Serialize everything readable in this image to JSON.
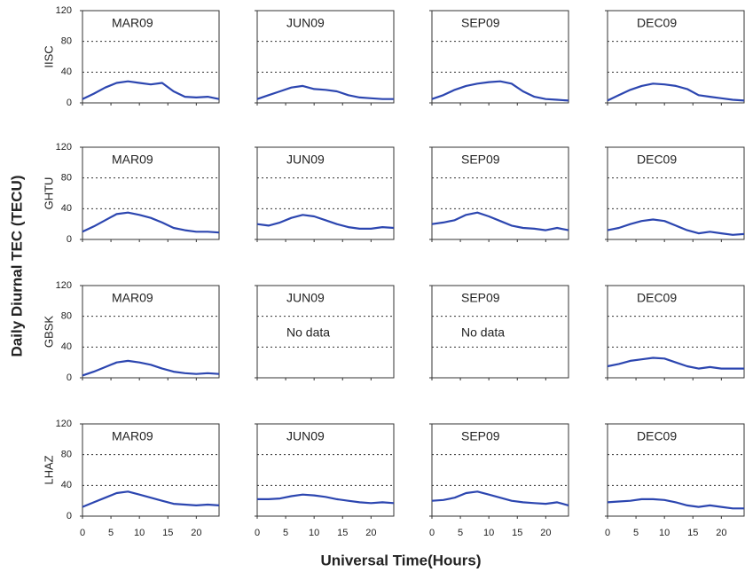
{
  "figure": {
    "ylabel": "Daily Diurnal TEC (TECU)",
    "xlabel": "Universal Time(Hours)"
  },
  "chart_data": [
    {
      "type": "line",
      "title": "MAR09",
      "ylabel": "IISC",
      "x": [
        0,
        2,
        4,
        6,
        8,
        10,
        12,
        14,
        16,
        18,
        20,
        22,
        24
      ],
      "series": [
        {
          "color": "#2c46b0",
          "values": [
            5,
            12,
            20,
            26,
            28,
            26,
            24,
            26,
            15,
            8,
            7,
            8,
            5
          ]
        }
      ],
      "xlim": [
        0,
        24
      ],
      "ylim": [
        0,
        120
      ],
      "xticks": [
        0,
        5,
        10,
        15,
        20
      ],
      "yticks": [
        0,
        40,
        80,
        120
      ],
      "grid": true
    },
    {
      "type": "line",
      "title": "JUN09",
      "x": [
        0,
        2,
        4,
        6,
        8,
        10,
        12,
        14,
        16,
        18,
        20,
        22,
        24
      ],
      "series": [
        {
          "color": "#2c46b0",
          "values": [
            5,
            10,
            15,
            20,
            22,
            18,
            17,
            15,
            10,
            7,
            6,
            5,
            5
          ]
        }
      ],
      "xlim": [
        0,
        24
      ],
      "ylim": [
        0,
        120
      ],
      "xticks": [
        0,
        5,
        10,
        15,
        20
      ],
      "yticks": [
        0,
        40,
        80,
        120
      ],
      "grid": true
    },
    {
      "type": "line",
      "title": "SEP09",
      "x": [
        0,
        2,
        4,
        6,
        8,
        10,
        12,
        14,
        16,
        18,
        20,
        22,
        24
      ],
      "series": [
        {
          "color": "#2c46b0",
          "values": [
            5,
            10,
            17,
            22,
            25,
            27,
            28,
            25,
            15,
            8,
            5,
            4,
            3
          ]
        }
      ],
      "xlim": [
        0,
        24
      ],
      "ylim": [
        0,
        120
      ],
      "xticks": [
        0,
        5,
        10,
        15,
        20
      ],
      "yticks": [
        0,
        40,
        80,
        120
      ],
      "grid": true
    },
    {
      "type": "line",
      "title": "DEC09",
      "x": [
        0,
        2,
        4,
        6,
        8,
        10,
        12,
        14,
        16,
        18,
        20,
        22,
        24
      ],
      "series": [
        {
          "color": "#2c46b0",
          "values": [
            3,
            10,
            17,
            22,
            25,
            24,
            22,
            18,
            10,
            8,
            6,
            4,
            3
          ]
        }
      ],
      "xlim": [
        0,
        24
      ],
      "ylim": [
        0,
        120
      ],
      "xticks": [
        0,
        5,
        10,
        15,
        20
      ],
      "yticks": [
        0,
        40,
        80,
        120
      ],
      "grid": true
    },
    {
      "type": "line",
      "title": "MAR09",
      "ylabel": "GHTU",
      "x": [
        0,
        2,
        4,
        6,
        8,
        10,
        12,
        14,
        16,
        18,
        20,
        22,
        24
      ],
      "series": [
        {
          "color": "#2c46b0",
          "values": [
            10,
            17,
            25,
            33,
            35,
            32,
            28,
            22,
            15,
            12,
            10,
            10,
            9
          ]
        }
      ],
      "xlim": [
        0,
        24
      ],
      "ylim": [
        0,
        120
      ],
      "xticks": [
        0,
        5,
        10,
        15,
        20
      ],
      "yticks": [
        0,
        40,
        80,
        120
      ],
      "grid": true
    },
    {
      "type": "line",
      "title": "JUN09",
      "x": [
        0,
        2,
        4,
        6,
        8,
        10,
        12,
        14,
        16,
        18,
        20,
        22,
        24
      ],
      "series": [
        {
          "color": "#2c46b0",
          "values": [
            20,
            18,
            22,
            28,
            32,
            30,
            25,
            20,
            16,
            14,
            14,
            16,
            15
          ]
        }
      ],
      "xlim": [
        0,
        24
      ],
      "ylim": [
        0,
        120
      ],
      "xticks": [
        0,
        5,
        10,
        15,
        20
      ],
      "yticks": [
        0,
        40,
        80,
        120
      ],
      "grid": true
    },
    {
      "type": "line",
      "title": "SEP09",
      "x": [
        0,
        2,
        4,
        6,
        8,
        10,
        12,
        14,
        16,
        18,
        20,
        22,
        24
      ],
      "series": [
        {
          "color": "#2c46b0",
          "values": [
            20,
            22,
            25,
            32,
            35,
            30,
            24,
            18,
            15,
            14,
            12,
            15,
            12
          ]
        }
      ],
      "xlim": [
        0,
        24
      ],
      "ylim": [
        0,
        120
      ],
      "xticks": [
        0,
        5,
        10,
        15,
        20
      ],
      "yticks": [
        0,
        40,
        80,
        120
      ],
      "grid": true
    },
    {
      "type": "line",
      "title": "DEC09",
      "x": [
        0,
        2,
        4,
        6,
        8,
        10,
        12,
        14,
        16,
        18,
        20,
        22,
        24
      ],
      "series": [
        {
          "color": "#2c46b0",
          "values": [
            12,
            15,
            20,
            24,
            26,
            24,
            18,
            12,
            8,
            10,
            8,
            6,
            7
          ]
        }
      ],
      "xlim": [
        0,
        24
      ],
      "ylim": [
        0,
        120
      ],
      "xticks": [
        0,
        5,
        10,
        15,
        20
      ],
      "yticks": [
        0,
        40,
        80,
        120
      ],
      "grid": true
    },
    {
      "type": "line",
      "title": "MAR09",
      "ylabel": "GBSK",
      "x": [
        0,
        2,
        4,
        6,
        8,
        10,
        12,
        14,
        16,
        18,
        20,
        22,
        24
      ],
      "series": [
        {
          "color": "#2c46b0",
          "values": [
            3,
            8,
            14,
            20,
            22,
            20,
            17,
            12,
            8,
            6,
            5,
            6,
            5
          ]
        }
      ],
      "xlim": [
        0,
        24
      ],
      "ylim": [
        0,
        120
      ],
      "xticks": [
        0,
        5,
        10,
        15,
        20
      ],
      "yticks": [
        0,
        40,
        80,
        120
      ],
      "grid": true
    },
    {
      "type": "line",
      "title": "JUN09",
      "annotation": "No data",
      "xlim": [
        0,
        24
      ],
      "ylim": [
        0,
        120
      ],
      "xticks": [
        0,
        5,
        10,
        15,
        20
      ],
      "yticks": [
        0,
        40,
        80,
        120
      ],
      "grid": true
    },
    {
      "type": "line",
      "title": "SEP09",
      "annotation": "No data",
      "xlim": [
        0,
        24
      ],
      "ylim": [
        0,
        120
      ],
      "xticks": [
        0,
        5,
        10,
        15,
        20
      ],
      "yticks": [
        0,
        40,
        80,
        120
      ],
      "grid": true
    },
    {
      "type": "line",
      "title": "DEC09",
      "x": [
        0,
        2,
        4,
        6,
        8,
        10,
        12,
        14,
        16,
        18,
        20,
        22,
        24
      ],
      "series": [
        {
          "color": "#2c46b0",
          "values": [
            15,
            18,
            22,
            24,
            26,
            25,
            20,
            15,
            12,
            14,
            12,
            12,
            12
          ]
        }
      ],
      "xlim": [
        0,
        24
      ],
      "ylim": [
        0,
        120
      ],
      "xticks": [
        0,
        5,
        10,
        15,
        20
      ],
      "yticks": [
        0,
        40,
        80,
        120
      ],
      "grid": true
    },
    {
      "type": "line",
      "title": "MAR09",
      "ylabel": "LHAZ",
      "x": [
        0,
        2,
        4,
        6,
        8,
        10,
        12,
        14,
        16,
        18,
        20,
        22,
        24
      ],
      "series": [
        {
          "color": "#2c46b0",
          "values": [
            12,
            18,
            24,
            30,
            32,
            28,
            24,
            20,
            16,
            15,
            14,
            15,
            14
          ]
        }
      ],
      "xlim": [
        0,
        24
      ],
      "ylim": [
        0,
        120
      ],
      "xticks": [
        0,
        5,
        10,
        15,
        20
      ],
      "yticks": [
        0,
        40,
        80,
        120
      ],
      "grid": true
    },
    {
      "type": "line",
      "title": "JUN09",
      "x": [
        0,
        2,
        4,
        6,
        8,
        10,
        12,
        14,
        16,
        18,
        20,
        22,
        24
      ],
      "series": [
        {
          "color": "#2c46b0",
          "values": [
            22,
            22,
            23,
            26,
            28,
            27,
            25,
            22,
            20,
            18,
            17,
            18,
            17
          ]
        }
      ],
      "xlim": [
        0,
        24
      ],
      "ylim": [
        0,
        120
      ],
      "xticks": [
        0,
        5,
        10,
        15,
        20
      ],
      "yticks": [
        0,
        40,
        80,
        120
      ],
      "grid": true
    },
    {
      "type": "line",
      "title": "SEP09",
      "x": [
        0,
        2,
        4,
        6,
        8,
        10,
        12,
        14,
        16,
        18,
        20,
        22,
        24
      ],
      "series": [
        {
          "color": "#2c46b0",
          "values": [
            20,
            21,
            24,
            30,
            32,
            28,
            24,
            20,
            18,
            17,
            16,
            18,
            14
          ]
        }
      ],
      "xlim": [
        0,
        24
      ],
      "ylim": [
        0,
        120
      ],
      "xticks": [
        0,
        5,
        10,
        15,
        20
      ],
      "yticks": [
        0,
        40,
        80,
        120
      ],
      "grid": true
    },
    {
      "type": "line",
      "title": "DEC09",
      "x": [
        0,
        2,
        4,
        6,
        8,
        10,
        12,
        14,
        16,
        18,
        20,
        22,
        24
      ],
      "series": [
        {
          "color": "#2c46b0",
          "values": [
            18,
            19,
            20,
            22,
            22,
            21,
            18,
            14,
            12,
            14,
            12,
            10,
            10
          ]
        }
      ],
      "xlim": [
        0,
        24
      ],
      "ylim": [
        0,
        120
      ],
      "xticks": [
        0,
        5,
        10,
        15,
        20
      ],
      "yticks": [
        0,
        40,
        80,
        120
      ],
      "grid": true
    }
  ]
}
